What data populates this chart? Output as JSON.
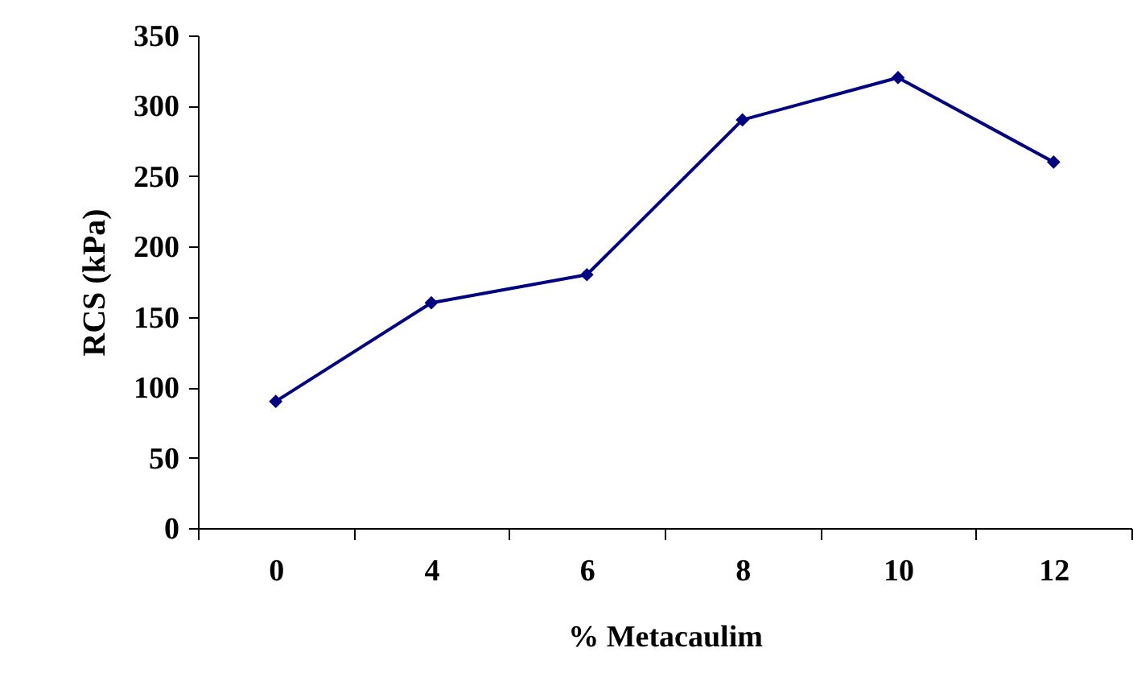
{
  "chart_data": {
    "type": "line",
    "xlabel": "% Metacaulim",
    "ylabel": "RCS (kPa)",
    "categories": [
      "0",
      "4",
      "6",
      "8",
      "10",
      "12"
    ],
    "series": [
      {
        "color": "#000080",
        "values": [
          90,
          160,
          180,
          290,
          320,
          260
        ]
      }
    ],
    "ylim": [
      0,
      350
    ],
    "yticks": [
      0,
      50,
      100,
      150,
      200,
      250,
      300,
      350
    ],
    "grid": false,
    "marker": "diamond",
    "line_style": "solid"
  }
}
